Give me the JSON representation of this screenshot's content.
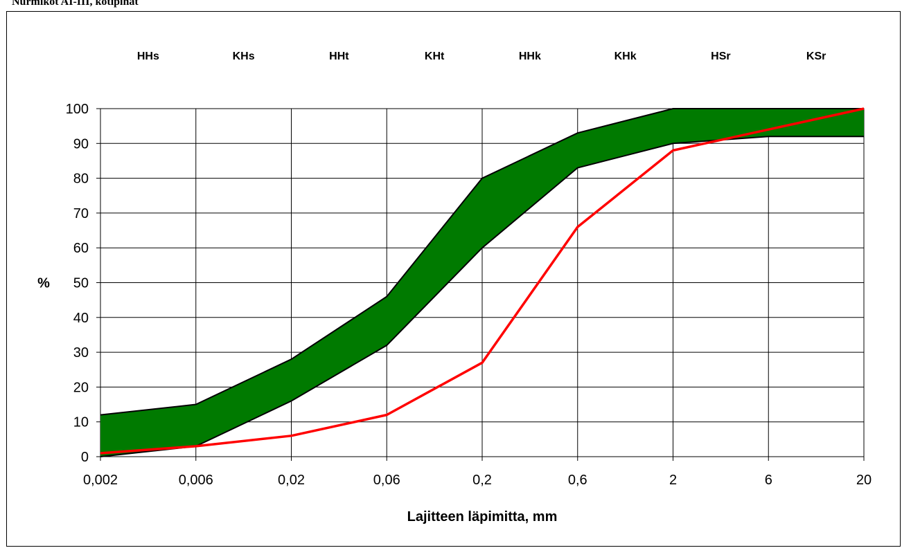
{
  "page_title": "Nurmikot AI-III, kotipihat",
  "colors": {
    "band_fill": "#007a00",
    "band_edge": "#000000",
    "sample_line": "#ff0000",
    "grid": "#000000"
  },
  "chart_data": {
    "type": "area",
    "x": [
      "0,002",
      "0,006",
      "0,02",
      "0,06",
      "0,2",
      "0,6",
      "2",
      "6",
      "20"
    ],
    "x_values": [
      0.002,
      0.006,
      0.02,
      0.06,
      0.2,
      0.6,
      2,
      6,
      20
    ],
    "x_scale": "categorical (logarithmic grain sizes)",
    "xlabel": "Lajitteen läpimitta, mm",
    "ylabel": "%",
    "ylim": [
      0,
      100
    ],
    "yticks": [
      "0",
      "10",
      "20",
      "30",
      "40",
      "50",
      "60",
      "70",
      "80",
      "90",
      "100"
    ],
    "grid": true,
    "class_labels": [
      "HHs",
      "KHs",
      "HHt",
      "KHt",
      "HHk",
      "KHk",
      "HSr",
      "KSr"
    ],
    "series": [
      {
        "role": "upper-limit",
        "values": [
          12,
          15,
          28,
          46,
          80,
          93,
          100,
          100,
          100
        ]
      },
      {
        "role": "lower-limit",
        "values": [
          0,
          3,
          16,
          32,
          60,
          83,
          90,
          92,
          92
        ]
      },
      {
        "role": "sample",
        "values": [
          1,
          3,
          6,
          12,
          27,
          66,
          88,
          94,
          100
        ]
      }
    ]
  }
}
